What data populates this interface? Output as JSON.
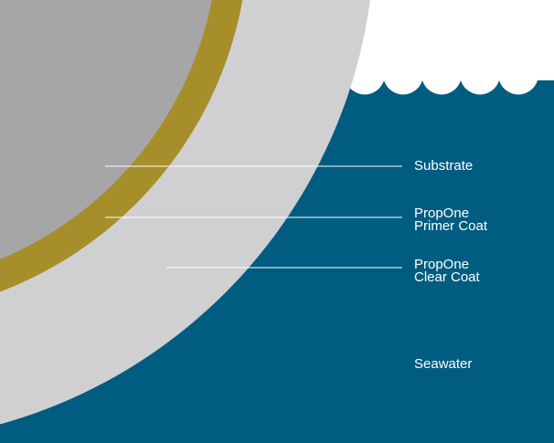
{
  "labels": [
    "Substrate",
    "PropOne\nPrimer Coat",
    "PropOne\nClear Coat",
    "Seawater"
  ]
}
